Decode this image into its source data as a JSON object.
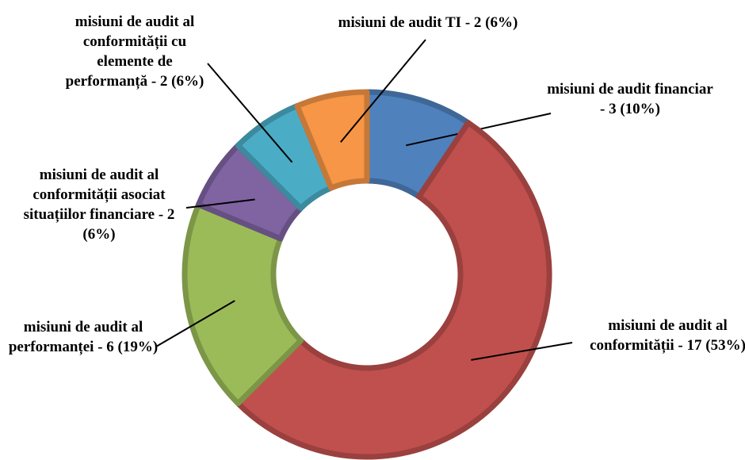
{
  "chart_data": {
    "type": "donut",
    "categories": [
      "misiuni de audit financiar - 3 (10%)",
      "misiuni de audit al conformității - 17 (53%)",
      "misiuni de audit al performanței - 6 (19%)",
      "misiuni de audit al conformității asociat situațiilor financiare - 2 (6%)",
      "misiuni de audit al conformității cu elemente de performanță - 2 (6%)",
      "misiuni de audit TI - 2 (6%)"
    ],
    "values": [
      3,
      17,
      6,
      2,
      2,
      2
    ],
    "colors": [
      "#4f81bd",
      "#c0504d",
      "#9bbb59",
      "#8064a2",
      "#4bacc6",
      "#f79646"
    ]
  }
}
